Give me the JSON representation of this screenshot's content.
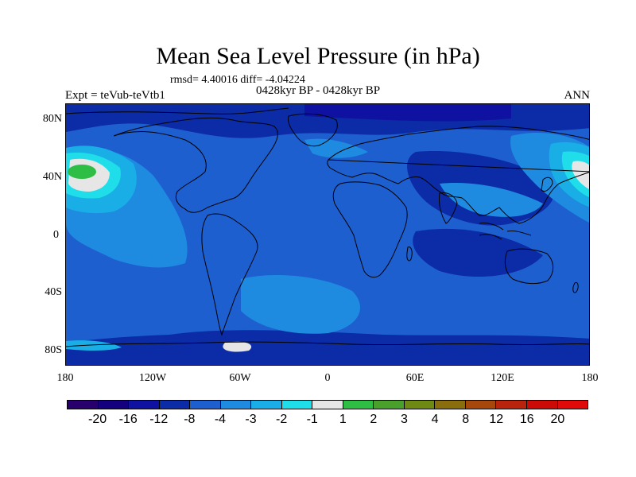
{
  "title": "Mean Sea Level Pressure (in hPa)",
  "stats": "rmsd= 4.40016 diff= -4.04224",
  "subtitle": "0428kyr BP - 0428kyr BP",
  "experiment": "Expt = teVub-teVtb1",
  "season": "ANN",
  "axes": {
    "y_ticks": [
      "80N",
      "40N",
      "0",
      "40S",
      "80S"
    ],
    "x_ticks": [
      "180",
      "120W",
      "60W",
      "0",
      "60E",
      "120E",
      "180"
    ]
  },
  "colorbar": {
    "labels": [
      "-20",
      "-16",
      "-12",
      "-8",
      "-4",
      "-3",
      "-2",
      "-1",
      "1",
      "2",
      "3",
      "4",
      "8",
      "12",
      "16",
      "20"
    ],
    "colors": [
      "#28006e",
      "#14007f",
      "#0f12a0",
      "#0c2ba6",
      "#1e5fd0",
      "#1e8be0",
      "#19afe6",
      "#1fdde9",
      "#e6e6e6",
      "#2ebd45",
      "#49a02a",
      "#6f8a12",
      "#8a6d0c",
      "#a6470c",
      "#b8250c",
      "#cc0a06",
      "#e00a0a"
    ]
  },
  "colors": {
    "background_field": "#1e5fd0",
    "coastline": "#000000"
  }
}
